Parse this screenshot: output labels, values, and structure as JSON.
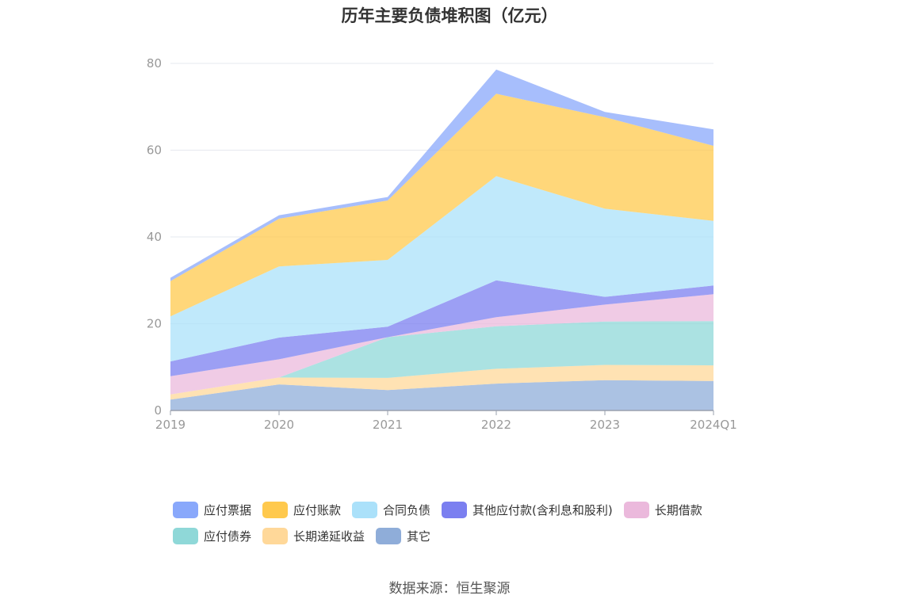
{
  "chart_data": {
    "type": "area",
    "stacked": true,
    "title": "历年主要负债堆积图（亿元）",
    "categories": [
      "2019",
      "2020",
      "2021",
      "2022",
      "2023",
      "2024Q1"
    ],
    "ylim": [
      0,
      80
    ],
    "yticks": [
      "0",
      "20",
      "40",
      "60",
      "80"
    ],
    "grid": true,
    "legend_position": "bottom",
    "series": [
      {
        "name": "其它",
        "color": "#8fadd9",
        "values": [
          2.5,
          6.0,
          4.7,
          6.2,
          7.0,
          6.8
        ]
      },
      {
        "name": "长期递延收益",
        "color": "#ffd899",
        "values": [
          1.2,
          1.6,
          2.8,
          3.4,
          3.5,
          3.6
        ]
      },
      {
        "name": "应付债券",
        "color": "#8fd8d8",
        "values": [
          0,
          0,
          9.4,
          9.8,
          10.0,
          10.2
        ]
      },
      {
        "name": "长期借款",
        "color": "#ebb9dc",
        "values": [
          4.2,
          4.2,
          0,
          2.1,
          3.9,
          6.2
        ]
      },
      {
        "name": "其他应付款(含利息和股利)",
        "color": "#7b7ff0",
        "values": [
          3.4,
          5.0,
          2.4,
          8.5,
          1.8,
          2.0
        ]
      },
      {
        "name": "合同负债",
        "color": "#abe1fa",
        "values": [
          10.4,
          16.4,
          15.4,
          24.0,
          20.3,
          14.9
        ]
      },
      {
        "name": "应付账款",
        "color": "#ffc94d",
        "values": [
          8.1,
          11.0,
          13.7,
          19.0,
          21.1,
          17.3
        ]
      },
      {
        "name": "应付票据",
        "color": "#89a8fb",
        "values": [
          0.8,
          0.8,
          0.8,
          5.6,
          1.2,
          3.8
        ]
      }
    ]
  },
  "legend": {
    "row1": [
      {
        "name": "应付票据",
        "color": "#89a8fb"
      },
      {
        "name": "应付账款",
        "color": "#ffc94d"
      },
      {
        "name": "合同负债",
        "color": "#abe1fa"
      },
      {
        "name": "其他应付款(含利息和股利)",
        "color": "#7b7ff0"
      },
      {
        "name": "长期借款",
        "color": "#ebb9dc"
      }
    ],
    "row2": [
      {
        "name": "应付债券",
        "color": "#8fd8d8"
      },
      {
        "name": "长期递延收益",
        "color": "#ffd899"
      },
      {
        "name": "其它",
        "color": "#8fadd9"
      }
    ]
  },
  "source": "数据来源：恒生聚源"
}
